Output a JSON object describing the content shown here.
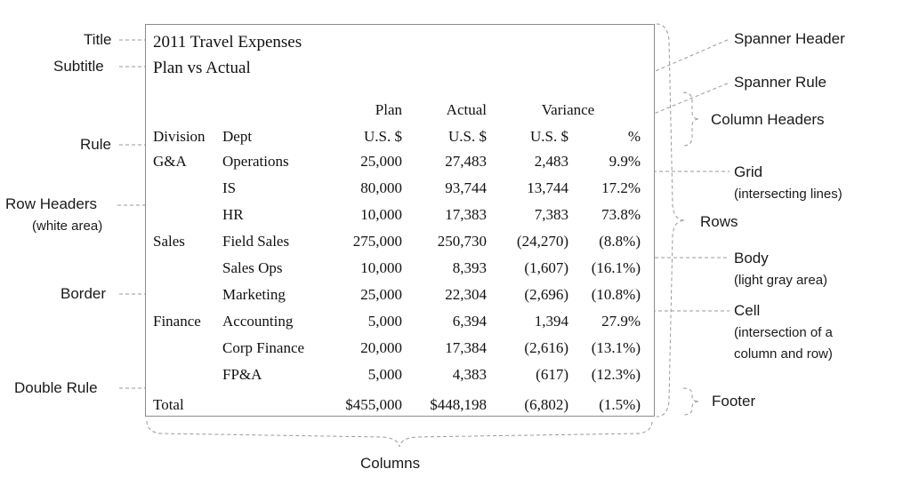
{
  "table": {
    "title": "2011 Travel Expenses",
    "subtitle": "Plan vs Actual",
    "spanner": "Variance",
    "col_top": {
      "plan": "Plan",
      "actual": "Actual"
    },
    "col_headers": {
      "division": "Division",
      "dept": "Dept",
      "plan": "U.S. $",
      "actual": "U.S. $",
      "var_usd": "U.S. $",
      "var_pct": "%"
    },
    "rows": [
      {
        "division": "G&A",
        "dept": "Operations",
        "plan": "25,000",
        "actual": "27,483",
        "var_usd": "2,483",
        "var_pct": "9.9%"
      },
      {
        "division": "",
        "dept": "IS",
        "plan": "80,000",
        "actual": "93,744",
        "var_usd": "13,744",
        "var_pct": "17.2%"
      },
      {
        "division": "",
        "dept": "HR",
        "plan": "10,000",
        "actual": "17,383",
        "var_usd": "7,383",
        "var_pct": "73.8%"
      },
      {
        "division": "Sales",
        "dept": "Field Sales",
        "plan": "275,000",
        "actual": "250,730",
        "var_usd": "(24,270)",
        "var_pct": "(8.8%)"
      },
      {
        "division": "",
        "dept": "Sales Ops",
        "plan": "10,000",
        "actual": "8,393",
        "var_usd": "(1,607)",
        "var_pct": "(16.1%)"
      },
      {
        "division": "",
        "dept": "Marketing",
        "plan": "25,000",
        "actual": "22,304",
        "var_usd": "(2,696)",
        "var_pct": "(10.8%)"
      },
      {
        "division": "Finance",
        "dept": "Accounting",
        "plan": "5,000",
        "actual": "6,394",
        "var_usd": "1,394",
        "var_pct": "27.9%"
      },
      {
        "division": "",
        "dept": "Corp Finance",
        "plan": "20,000",
        "actual": "17,384",
        "var_usd": "(2,616)",
        "var_pct": "(13.1%)"
      },
      {
        "division": "",
        "dept": "FP&A",
        "plan": "5,000",
        "actual": "4,383",
        "var_usd": "(617)",
        "var_pct": "(12.3%)"
      }
    ],
    "footer": {
      "label": "Total",
      "plan": "$455,000",
      "actual": "$448,198",
      "var_usd": "(6,802)",
      "var_pct": "(1.5%)"
    }
  },
  "callouts": {
    "title": "Title",
    "subtitle": "Subtitle",
    "rule": "Rule",
    "row_headers": "Row Headers",
    "row_headers_note": "(white area)",
    "border": "Border",
    "double_rule": "Double Rule",
    "columns": "Columns",
    "spanner_header": "Spanner Header",
    "spanner_rule": "Spanner Rule",
    "column_headers": "Column Headers",
    "grid": "Grid",
    "grid_note": "(intersecting lines)",
    "rows": "Rows",
    "body": "Body",
    "body_note": "(light gray area)",
    "cell": "Cell",
    "cell_note_1": "(intersection of a",
    "cell_note_2": "column and row)",
    "footer": "Footer"
  },
  "colors": {
    "body_fill": "#efefef",
    "grid": "#c8c8c8",
    "border": "#8c8c8c",
    "callout_line": "#9a9a9a"
  }
}
